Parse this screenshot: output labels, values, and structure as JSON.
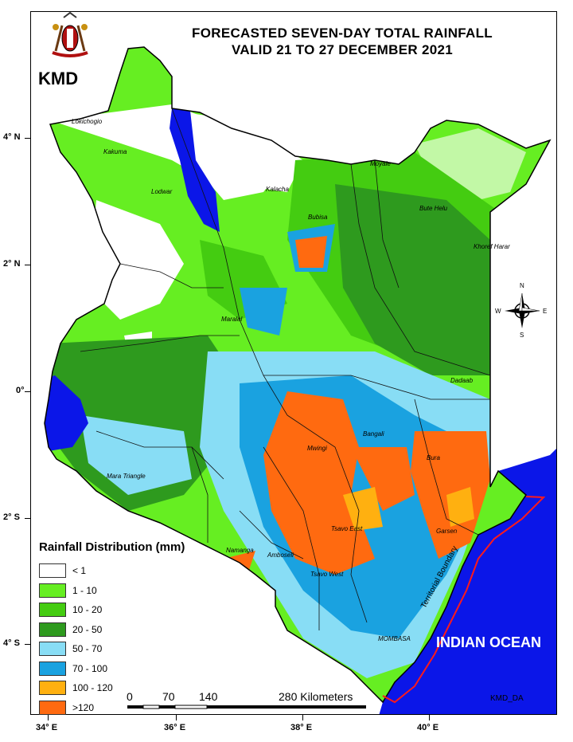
{
  "title_line1": "FORECASTED SEVEN-DAY TOTAL RAINFALL",
  "title_line2": "VALID  21 TO 27 DECEMBER 2021",
  "agency": "KMD",
  "latitude_labels": [
    "4° N",
    "2° N",
    "0°",
    "2° S",
    "4° S"
  ],
  "longitude_labels": [
    "34° E",
    "36° E",
    "38° E",
    "40° E"
  ],
  "places": [
    "Lokichogio",
    "Kakuma",
    "Lodwar",
    "Moyale",
    "Kalacha",
    "Bubisa",
    "Bute Helu",
    "Khoref Harar",
    "Maralal",
    "Dadaab",
    "Bangali",
    "Mwingi",
    "Bura",
    "Garsen",
    "Mara Triangle",
    "Namanga",
    "Amboseli",
    "Tsavo East",
    "Tsavo West",
    "MOMBASA"
  ],
  "compass": {
    "n": "N",
    "s": "S",
    "e": "E",
    "w": "W"
  },
  "legend": {
    "title": "Rainfall Distribution (mm)",
    "items": [
      {
        "label": "< 1",
        "color": "#ffffff"
      },
      {
        "label": "1 - 10",
        "color": "#66ee22"
      },
      {
        "label": "10 - 20",
        "color": "#44cc11"
      },
      {
        "label": "20 - 50",
        "color": "#2e9a1e"
      },
      {
        "label": "50 - 70",
        "color": "#88ddf5"
      },
      {
        "label": "70 - 100",
        "color": "#1aa2e0"
      },
      {
        "label": "100 - 120",
        "color": "#ffb010"
      },
      {
        "label": ">120",
        "color": "#ff6a10"
      }
    ]
  },
  "scale": {
    "labels": [
      "0",
      "70",
      "140",
      "280 Kilometers"
    ]
  },
  "ocean_label": "INDIAN OCEAN",
  "boundary_label": "Territorial Boundary",
  "credit": "KMD_DA",
  "colors": {
    "ocean": "#0b16e8",
    "lake": "#0b16e8",
    "boundary": "#ff1a1a"
  }
}
